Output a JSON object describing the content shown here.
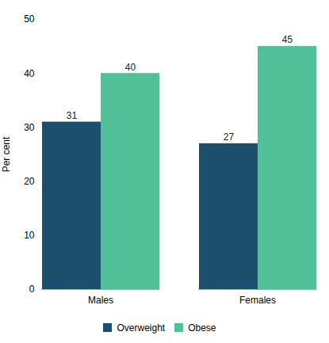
{
  "chart_data": {
    "type": "bar",
    "categories": [
      "Males",
      "Females"
    ],
    "series": [
      {
        "name": "Overweight",
        "color": "#1b4f6b",
        "values": [
          31,
          27
        ]
      },
      {
        "name": "Obese",
        "color": "#52c19a",
        "values": [
          40,
          45
        ]
      }
    ],
    "ylabel": "Per cent",
    "ylim": [
      0,
      50
    ],
    "yticks": [
      0,
      10,
      20,
      30,
      40,
      50
    ],
    "grid": false,
    "legend": "bottom",
    "data_labels": true
  }
}
